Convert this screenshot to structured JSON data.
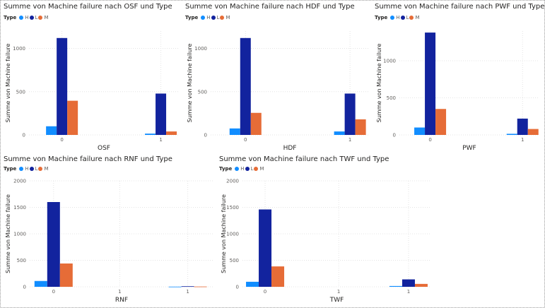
{
  "legend_title": "Type",
  "colors": {
    "H": "#118DFF",
    "L": "#12239E",
    "M": "#E66C37"
  },
  "chart_data": [
    {
      "type": "bar",
      "title": "Summe von Machine failure nach OSF und Type",
      "xlabel": "OSF",
      "ylabel": "Summe von Machine failure",
      "categories": [
        "0",
        "1"
      ],
      "xticks": [
        "0",
        "1"
      ],
      "ylim": [
        0,
        1200
      ],
      "yticks": [
        0,
        500,
        1000
      ],
      "series": [
        {
          "name": "H",
          "values": [
            100,
            15
          ]
        },
        {
          "name": "L",
          "values": [
            1120,
            478
          ]
        },
        {
          "name": "M",
          "values": [
            395,
            40
          ]
        }
      ]
    },
    {
      "type": "bar",
      "title": "Summe von Machine failure nach HDF und Type",
      "xlabel": "HDF",
      "ylabel": "Summe von Machine failure",
      "categories": [
        "0",
        "1"
      ],
      "xticks": [
        "0",
        "1"
      ],
      "ylim": [
        0,
        1200
      ],
      "yticks": [
        0,
        500,
        1000
      ],
      "series": [
        {
          "name": "H",
          "values": [
            75,
            40
          ]
        },
        {
          "name": "L",
          "values": [
            1120,
            478
          ]
        },
        {
          "name": "M",
          "values": [
            255,
            180
          ]
        }
      ]
    },
    {
      "type": "bar",
      "title": "Summe von Machine failure nach PWF und Type",
      "xlabel": "PWF",
      "ylabel": "Summe von Machine failure",
      "categories": [
        "0",
        "1"
      ],
      "xticks": [
        "0",
        "1"
      ],
      "ylim": [
        0,
        1400
      ],
      "yticks": [
        0,
        500,
        1000
      ],
      "series": [
        {
          "name": "H",
          "values": [
            100,
            15
          ]
        },
        {
          "name": "L",
          "values": [
            1380,
            220
          ]
        },
        {
          "name": "M",
          "values": [
            350,
            80
          ]
        }
      ]
    },
    {
      "type": "bar",
      "title": "Summe von Machine failure nach RNF und Type",
      "xlabel": "RNF",
      "ylabel": "Summe von Machine failure",
      "categories": [
        "0",
        "1"
      ],
      "xticks": [
        "0",
        "1",
        "1"
      ],
      "ylim": [
        0,
        2000
      ],
      "yticks": [
        0,
        500,
        1000,
        1500,
        2000
      ],
      "series": [
        {
          "name": "H",
          "values": [
            110,
            3
          ]
        },
        {
          "name": "L",
          "values": [
            1600,
            10
          ]
        },
        {
          "name": "M",
          "values": [
            440,
            5
          ]
        }
      ]
    },
    {
      "type": "bar",
      "title": "Summe von Machine failure nach TWF und Type",
      "xlabel": "TWF",
      "ylabel": "Summe von Machine failure",
      "categories": [
        "0",
        "1"
      ],
      "xticks": [
        "0",
        "1",
        "1"
      ],
      "ylim": [
        0,
        2000
      ],
      "yticks": [
        0,
        500,
        1000,
        1500,
        2000
      ],
      "series": [
        {
          "name": "H",
          "values": [
            95,
            15
          ]
        },
        {
          "name": "L",
          "values": [
            1460,
            140
          ]
        },
        {
          "name": "M",
          "values": [
            385,
            55
          ]
        }
      ]
    }
  ]
}
